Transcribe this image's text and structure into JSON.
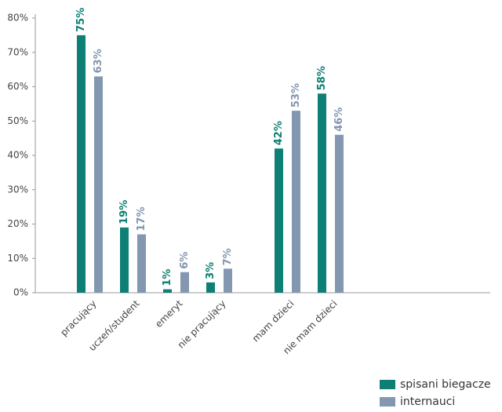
{
  "chart_data": {
    "type": "bar",
    "categories": [
      "pracujący",
      "uczeń/student",
      "emeryt",
      "nie pracujący",
      "mam dzieci",
      "nie mam dzieci"
    ],
    "series": [
      {
        "name": "spisani biegacze",
        "color": "#0e7f74",
        "values": [
          75,
          19,
          1,
          3,
          42,
          58
        ],
        "value_labels": [
          "75%",
          "19%",
          "1%",
          "3%",
          "42%",
          "58%"
        ]
      },
      {
        "name": "internauci",
        "color": "#8497b0",
        "values": [
          63,
          17,
          6,
          7,
          53,
          46
        ],
        "value_labels": [
          "63%",
          "17%",
          "6%",
          "7%",
          "53%",
          "46%"
        ]
      }
    ],
    "ylim": [
      0,
      80
    ],
    "yticks": [
      {
        "value": 0,
        "label": "0%"
      },
      {
        "value": 10,
        "label": "10%"
      },
      {
        "value": 20,
        "label": "20%"
      },
      {
        "value": 30,
        "label": "30%"
      },
      {
        "value": 40,
        "label": "40%"
      },
      {
        "value": 50,
        "label": "50%"
      },
      {
        "value": 60,
        "label": "60%"
      },
      {
        "value": 70,
        "label": "70%"
      },
      {
        "value": 80,
        "label": "80%"
      }
    ],
    "legend": "lower right"
  }
}
